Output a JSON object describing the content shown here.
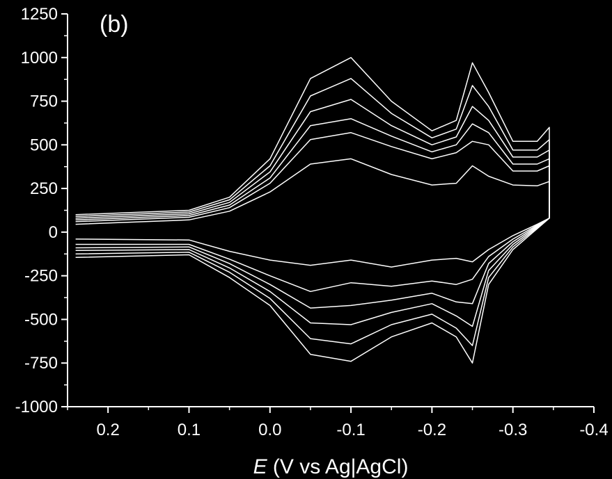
{
  "chart_data": {
    "type": "line",
    "panel_label": "(b)",
    "xlabel_symbol": "E",
    "xlabel_rest": " (V vs Ag|AgCl)",
    "ylabel": "",
    "xlim": [
      0.25,
      -0.4
    ],
    "ylim": [
      -1000,
      1250
    ],
    "x_major_ticks": [
      0.2,
      0.1,
      0.0,
      -0.1,
      -0.2,
      -0.3,
      -0.4
    ],
    "x_tick_labels": [
      "0.2",
      "0.1",
      "0.0",
      "-0.1",
      "-0.2",
      "-0.3",
      "-0.4"
    ],
    "y_major_ticks": [
      1250,
      1000,
      750,
      500,
      250,
      0,
      -250,
      -500,
      -750,
      -1000
    ],
    "y_tick_labels": [
      "1250",
      "1000",
      "750",
      "500",
      "250",
      "0",
      "-250",
      "-500",
      "-750",
      "-1000"
    ],
    "grid": false,
    "series_color": "#ffffff",
    "x": [
      0.24,
      0.1,
      0.05,
      0.0,
      -0.05,
      -0.1,
      -0.15,
      -0.2,
      -0.23,
      -0.25,
      -0.27,
      -0.3,
      -0.33,
      -0.345
    ],
    "series": [
      {
        "forward": [
          100,
          125,
          200,
          420,
          880,
          1000,
          750,
          580,
          640,
          970,
          800,
          520,
          520,
          600
        ],
        "reverse": [
          -145,
          -130,
          -260,
          -420,
          -700,
          -740,
          -600,
          -520,
          -600,
          -750,
          -300,
          -100,
          20,
          80
        ]
      },
      {
        "forward": [
          90,
          115,
          185,
          380,
          780,
          880,
          680,
          540,
          590,
          840,
          720,
          470,
          470,
          530
        ],
        "reverse": [
          -125,
          -115,
          -230,
          -380,
          -610,
          -640,
          -530,
          -470,
          -550,
          -650,
          -260,
          -85,
          25,
          80
        ]
      },
      {
        "forward": [
          80,
          105,
          170,
          345,
          690,
          760,
          610,
          500,
          545,
          720,
          640,
          430,
          430,
          470
        ],
        "reverse": [
          -105,
          -100,
          -205,
          -340,
          -520,
          -530,
          -460,
          -410,
          -480,
          -540,
          -220,
          -70,
          30,
          80
        ]
      },
      {
        "forward": [
          70,
          95,
          155,
          310,
          610,
          650,
          550,
          460,
          500,
          620,
          570,
          390,
          390,
          420
        ],
        "reverse": [
          -90,
          -85,
          -180,
          -300,
          -435,
          -420,
          -390,
          -350,
          -400,
          -410,
          -180,
          -55,
          35,
          80
        ]
      },
      {
        "forward": [
          60,
          85,
          140,
          280,
          530,
          570,
          490,
          420,
          455,
          520,
          500,
          350,
          350,
          380
        ],
        "reverse": [
          -70,
          -70,
          -155,
          -250,
          -340,
          -290,
          -310,
          -280,
          -300,
          -270,
          -140,
          -40,
          40,
          80
        ]
      },
      {
        "forward": [
          45,
          70,
          120,
          230,
          390,
          420,
          330,
          270,
          280,
          380,
          320,
          270,
          265,
          290
        ],
        "reverse": [
          -40,
          -45,
          -110,
          -160,
          -190,
          -160,
          -200,
          -160,
          -150,
          -170,
          -100,
          -20,
          45,
          80
        ]
      }
    ]
  }
}
